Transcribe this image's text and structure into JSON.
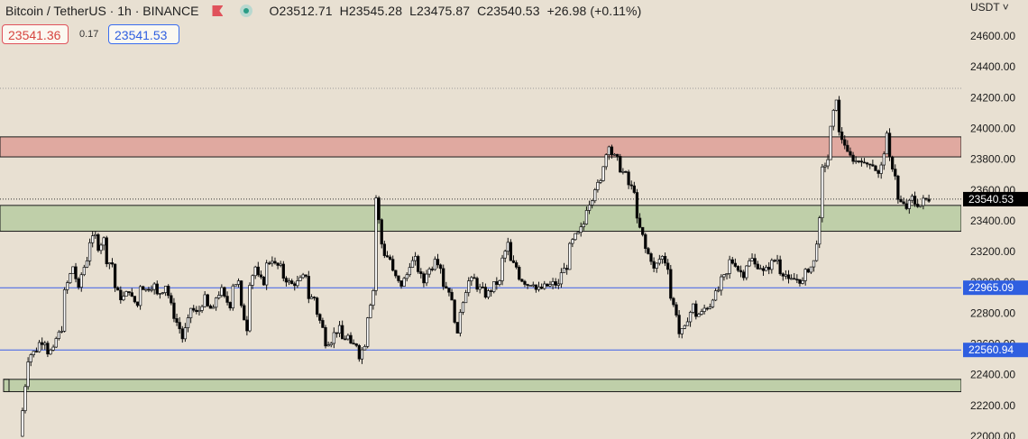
{
  "header": {
    "symbol": "Bitcoin / TetherUS · 1h · BINANCE",
    "open": "O23512.71",
    "high": "H23545.28",
    "low": "L23475.87",
    "close": "C23540.53",
    "change": "+26.98 (+0.11%)",
    "sell_price": "23541.36",
    "spread": "0.17",
    "buy_price": "23541.53",
    "currency": "USDT ˅"
  },
  "colors": {
    "background": "#e8e0d2",
    "supply_zone": "#e0a9a0",
    "demand_zone": "#bfcfa9",
    "level_line": "#3a5ee8",
    "candle_up": "#ffffff",
    "candle_down": "#000000",
    "last_price_tag": "#000000",
    "level_tag": "#2f5fe0"
  },
  "chart_data": {
    "type": "candlestick",
    "title": "Bitcoin / TetherUS · 1h · BINANCE",
    "ylim": [
      22000,
      24700
    ],
    "y_ticks": [
      "24600.00",
      "24400.00",
      "24200.00",
      "24000.00",
      "23800.00",
      "23600.00",
      "23400.00",
      "23200.00",
      "23000.00",
      "22800.00",
      "22600.00",
      "22400.00",
      "22200.00",
      "22000.00"
    ],
    "grid": false,
    "zones": [
      {
        "kind": "supply",
        "from": 23815,
        "to": 23945
      },
      {
        "kind": "demand",
        "from": 23332,
        "to": 23500
      },
      {
        "kind": "demand",
        "from": 22290,
        "to": 22370
      }
    ],
    "levels": [
      {
        "value": 22965.09,
        "label": "22965.09"
      },
      {
        "value": 22560.94,
        "label": "22560.94"
      }
    ],
    "last_price": {
      "value": 23540.53,
      "label": "23540.53"
    },
    "high_marker": 24260,
    "path": [
      [
        22000,
        22500
      ],
      [
        22520,
        22560
      ],
      [
        22600,
        22620
      ],
      [
        22540,
        22560
      ],
      [
        22600,
        22700
      ],
      [
        22880,
        23050
      ],
      [
        23180,
        22950
      ],
      [
        23000,
        23150
      ],
      [
        23250,
        23300
      ],
      [
        23200,
        23280
      ],
      [
        23150,
        23120
      ],
      [
        23000,
        22900
      ],
      [
        22880,
        22950
      ],
      [
        22920,
        22850
      ],
      [
        23000,
        22950
      ],
      [
        22960,
        22980
      ],
      [
        22900,
        22950
      ],
      [
        23050,
        22850
      ],
      [
        22820,
        22700
      ],
      [
        22580,
        22750
      ],
      [
        22850,
        22800
      ],
      [
        22780,
        22900
      ],
      [
        22850,
        22820
      ],
      [
        22880,
        22950
      ],
      [
        22920,
        22850
      ],
      [
        22980,
        23000
      ],
      [
        22900,
        22700
      ],
      [
        22950,
        23100
      ],
      [
        23050,
        23000
      ],
      [
        23100,
        23150
      ],
      [
        23120,
        23100
      ],
      [
        23050,
        23000
      ],
      [
        22980,
        23000
      ],
      [
        23000,
        23050
      ],
      [
        22900,
        22900
      ],
      [
        22850,
        22700
      ],
      [
        22600,
        22620
      ],
      [
        22650,
        22700
      ],
      [
        22620,
        22650
      ],
      [
        22580,
        22600
      ],
      [
        22480,
        22600
      ],
      [
        22700,
        22950
      ],
      [
        23700,
        23250
      ],
      [
        23200,
        23150
      ],
      [
        23100,
        23000
      ],
      [
        22950,
        23050
      ],
      [
        23100,
        23150
      ],
      [
        23120,
        23000
      ],
      [
        23050,
        23100
      ],
      [
        23200,
        23100
      ],
      [
        23000,
        22950
      ],
      [
        22980,
        22650
      ],
      [
        22750,
        22950
      ],
      [
        23000,
        23020
      ],
      [
        22980,
        22950
      ],
      [
        22900,
        22950
      ],
      [
        22980,
        23000
      ],
      [
        23100,
        23250
      ],
      [
        23150,
        23100
      ],
      [
        23050,
        23000
      ],
      [
        22980,
        23000
      ],
      [
        22950,
        22960
      ],
      [
        22970,
        22980
      ],
      [
        23000,
        22980
      ],
      [
        23050,
        23100
      ],
      [
        23200,
        23300
      ],
      [
        23280,
        23380
      ],
      [
        23450,
        23550
      ],
      [
        23600,
        23650
      ],
      [
        23700,
        23900
      ],
      [
        23850,
        23800
      ],
      [
        23750,
        23700
      ],
      [
        23650,
        23600
      ],
      [
        23450,
        23300
      ],
      [
        23250,
        23150
      ],
      [
        23050,
        23150
      ],
      [
        23200,
        23100
      ],
      [
        22950,
        22800
      ],
      [
        22650,
        22700
      ],
      [
        22720,
        22850
      ],
      [
        22780,
        22800
      ],
      [
        22820,
        22850
      ],
      [
        22880,
        22950
      ],
      [
        23000,
        23050
      ],
      [
        23150,
        23120
      ],
      [
        23100,
        23050
      ],
      [
        23100,
        23150
      ],
      [
        23120,
        23100
      ],
      [
        23050,
        23100
      ],
      [
        23120,
        23150
      ],
      [
        23080,
        23050
      ],
      [
        23000,
        23020
      ],
      [
        23030,
        23000
      ],
      [
        23050,
        23100
      ],
      [
        23000,
        23400
      ],
      [
        23700,
        23800
      ],
      [
        23900,
        24200
      ],
      [
        24000,
        23900
      ],
      [
        23850,
        23800
      ],
      [
        23780,
        23800
      ],
      [
        23750,
        23780
      ],
      [
        23800,
        23700
      ],
      [
        23650,
        23950
      ],
      [
        23850,
        23700
      ],
      [
        23550,
        23500
      ],
      [
        23450,
        23550
      ],
      [
        23520,
        23500
      ],
      [
        23530,
        23540
      ]
    ]
  }
}
